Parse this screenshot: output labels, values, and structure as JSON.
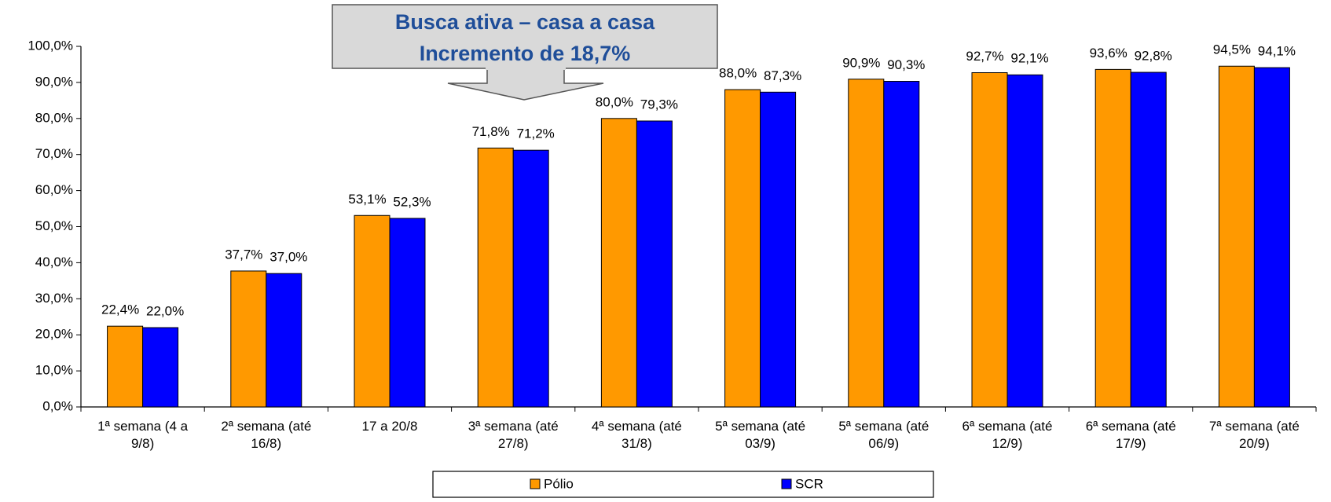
{
  "chart_data": {
    "type": "bar",
    "annotation": [
      "Busca ativa – casa a casa",
      "Incremento de 18,7%"
    ],
    "categories": [
      "1ª semana (4 a 9/8)",
      "2ª semana (até 16/8)",
      "17 a 20/8",
      "3ª semana (até 27/8)",
      "4ª semana (até 31/8)",
      "5ª semana (até 03/9)",
      "5ª semana (até 06/9)",
      "6ª semana (até 12/9)",
      "6ª semana (até 17/9)",
      "7ª semana (até 20/9)"
    ],
    "series": [
      {
        "name": "Pólio",
        "color": "#FF9900",
        "values": [
          22.4,
          37.7,
          53.1,
          71.8,
          80.0,
          88.0,
          90.9,
          92.7,
          93.6,
          94.5
        ],
        "value_labels": [
          "22,4%",
          "37,7%",
          "53,1%",
          "71,8%",
          "80,0%",
          "88,0%",
          "90,9%",
          "92,7%",
          "93,6%",
          "94,5%"
        ]
      },
      {
        "name": "SCR",
        "color": "#0000FF",
        "values": [
          22.0,
          37.0,
          52.3,
          71.2,
          79.3,
          87.3,
          90.3,
          92.1,
          92.8,
          94.1
        ],
        "value_labels": [
          "22,0%",
          "37,0%",
          "52,3%",
          "71,2%",
          "79,3%",
          "87,3%",
          "90,3%",
          "92,1%",
          "92,8%",
          "94,1%"
        ]
      }
    ],
    "ylim": [
      0,
      100
    ],
    "yticks": [
      {
        "value": 0,
        "label": "0,0%"
      },
      {
        "value": 10,
        "label": "10,0%"
      },
      {
        "value": 20,
        "label": "20,0%"
      },
      {
        "value": 30,
        "label": "30,0%"
      },
      {
        "value": 40,
        "label": "40,0%"
      },
      {
        "value": 50,
        "label": "50,0%"
      },
      {
        "value": 60,
        "label": "60,0%"
      },
      {
        "value": 70,
        "label": "70,0%"
      },
      {
        "value": 80,
        "label": "80,0%"
      },
      {
        "value": 90,
        "label": "90,0%"
      },
      {
        "value": 100,
        "label": "100,0%"
      }
    ],
    "legend": "bottom"
  }
}
